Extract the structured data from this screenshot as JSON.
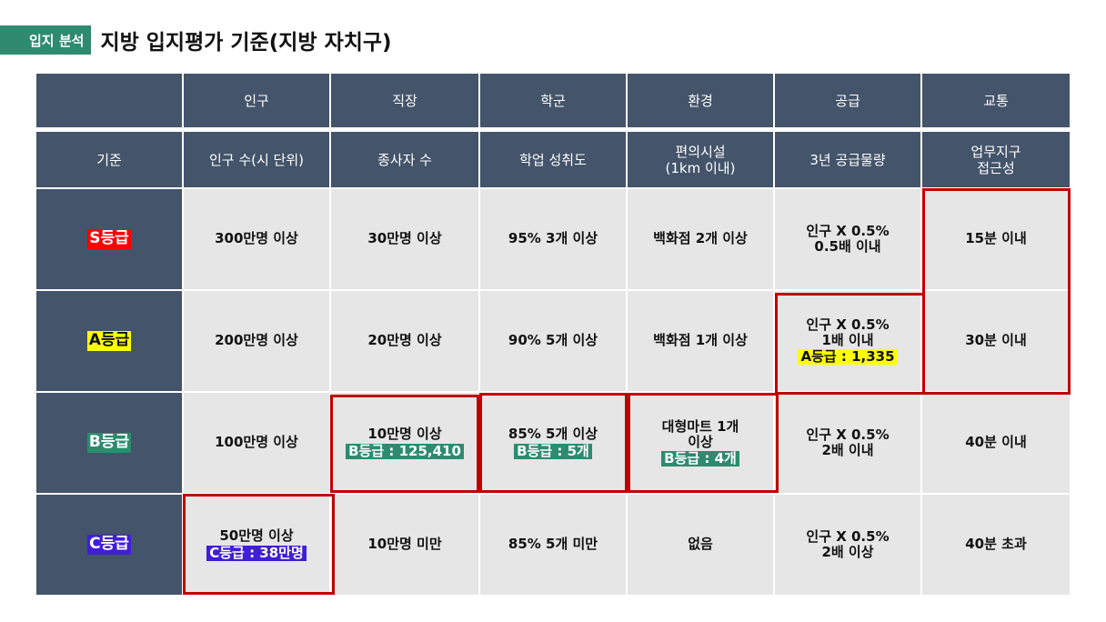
{
  "title": {
    "tag": "입지 분석",
    "text": "지방 입지평가 기준(지방 자치구)"
  },
  "header1": [
    "",
    "인구",
    "직장",
    "학군",
    "환경",
    "공급",
    "교통"
  ],
  "header2": [
    "기준",
    "인구 수(시 단위)",
    "종사자 수",
    "학업 성취도",
    "편의시설\n(1km 이내)",
    "3년 공급물량",
    "업무지구\n접근성"
  ],
  "rows": [
    {
      "grade": "S등급",
      "cells": [
        "300만명 이상",
        "30만명 이상",
        "95% 3개 이상",
        "백화점 2개 이상",
        "인구 X 0.5%\n0.5배 이내",
        "15분 이내"
      ]
    },
    {
      "grade": "A등급",
      "cells": [
        "200만명 이상",
        "20만명 이상",
        "90% 5개 이상",
        "백화점 1개 이상",
        "인구 X 0.5%\n1배 이내",
        "30분 이내"
      ]
    },
    {
      "grade": "B등급",
      "cells": [
        "100만명 이상",
        "10만명 이상",
        "85% 5개 이상",
        "대형마트 1개\n이상",
        "인구 X 0.5%\n2배 이내",
        "40분 이내"
      ]
    },
    {
      "grade": "C등급",
      "cells": [
        "50만명 이상",
        "10만명 미만",
        "85% 5개 미만",
        "없음",
        "인구 X 0.5%\n2배 이상",
        "40분 초과"
      ]
    }
  ],
  "highlights": {
    "a_supply": "A등급 : 1,335",
    "b_workers": "B등급 : 125,410",
    "b_school": "B등급 : 5개",
    "b_env": "B등급 : 4개",
    "c_population": "C등급 : 38만명"
  },
  "colors": {
    "header": "#44546a",
    "cell": "#e6e6e6",
    "accent": "#2e8b6e",
    "s": "#ff0000",
    "a": "#ffff00",
    "b": "#2e8b6e",
    "c": "#3f1fd6",
    "box": "#c00000"
  }
}
